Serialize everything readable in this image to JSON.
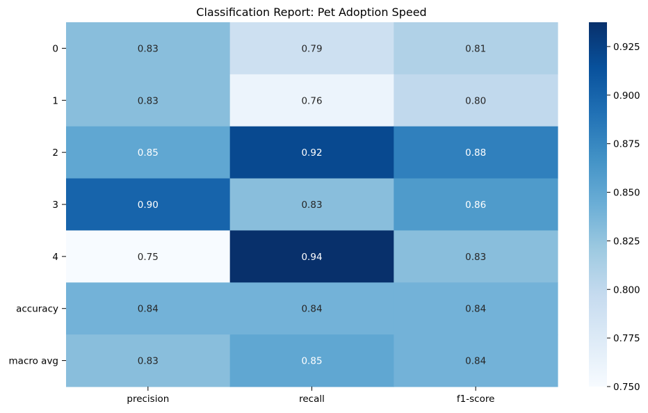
{
  "chart_data": {
    "type": "heatmap",
    "title": "Classification Report: Pet Adoption Speed",
    "xlabel": "",
    "ylabel": "",
    "columns": [
      "precision",
      "recall",
      "f1-score"
    ],
    "rows": [
      "0",
      "1",
      "2",
      "3",
      "4",
      "accuracy",
      "macro avg"
    ],
    "values": [
      [
        0.83,
        0.79,
        0.81
      ],
      [
        0.83,
        0.76,
        0.8
      ],
      [
        0.85,
        0.92,
        0.88
      ],
      [
        0.9,
        0.83,
        0.86
      ],
      [
        0.75,
        0.94,
        0.83
      ],
      [
        0.84,
        0.84,
        0.84
      ],
      [
        0.83,
        0.85,
        0.84
      ]
    ],
    "annotations": [
      [
        "0.83",
        "0.79",
        "0.81"
      ],
      [
        "0.83",
        "0.76",
        "0.80"
      ],
      [
        "0.85",
        "0.92",
        "0.88"
      ],
      [
        "0.90",
        "0.83",
        "0.86"
      ],
      [
        "0.75",
        "0.94",
        "0.83"
      ],
      [
        "0.84",
        "0.84",
        "0.84"
      ],
      [
        "0.83",
        "0.85",
        "0.84"
      ]
    ],
    "colormap": "Blues",
    "colorbar": {
      "min": 0.75,
      "max": 0.9375,
      "ticks": [
        "0.750",
        "0.775",
        "0.800",
        "0.825",
        "0.850",
        "0.875",
        "0.900",
        "0.925"
      ]
    }
  }
}
